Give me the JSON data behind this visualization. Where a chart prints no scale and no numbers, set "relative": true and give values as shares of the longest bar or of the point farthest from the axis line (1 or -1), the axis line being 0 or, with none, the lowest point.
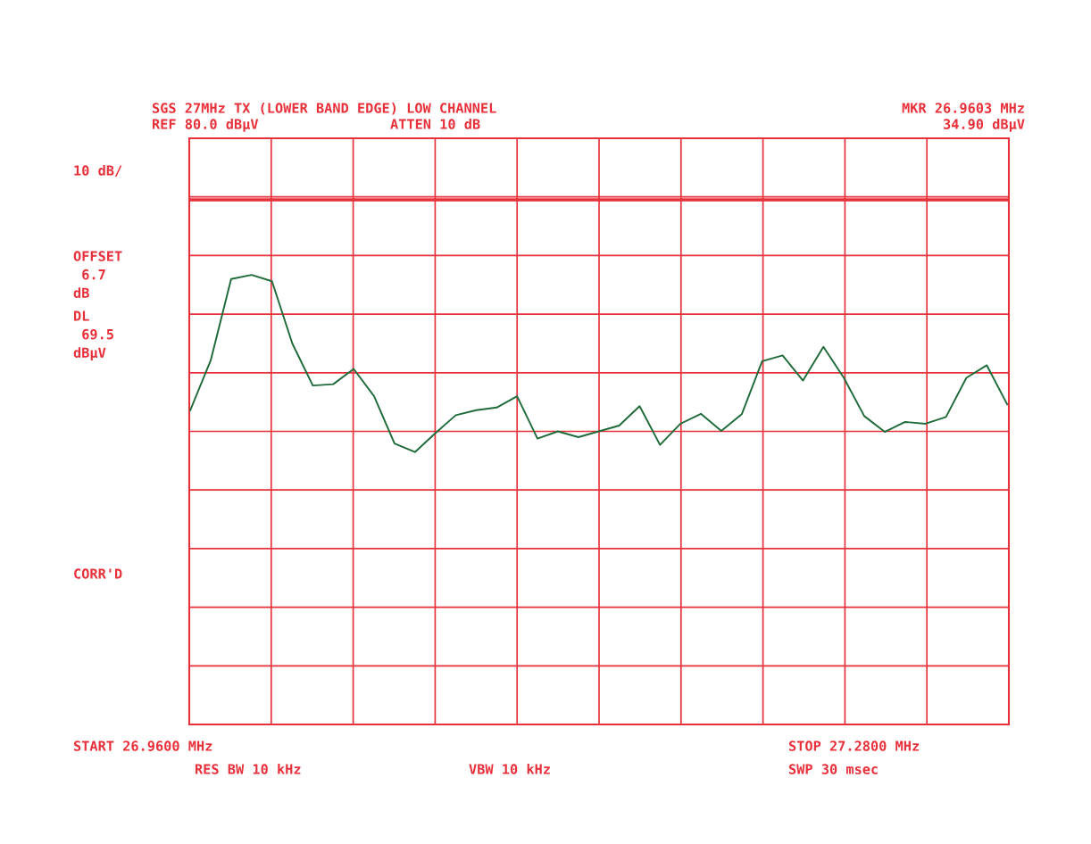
{
  "chart_data": {
    "type": "line",
    "relative": true,
    "annotations": [
      "SGS 27MHz TX (LOWER BAND EDGE) LOW CHANNEL",
      "MKR 26.9603 MHz",
      "REF 80.0 dBμV",
      "ATTEN 10 dB",
      "34.90 dBμV",
      "10 dB/",
      "OFFSET\n 6.7\ndB",
      "DL\n 69.5\ndBμV",
      "CORR'D",
      "START 26.9600 MHz",
      "RES BW 10 kHz",
      "VBW 10 kHz",
      "STOP 27.2800 MHz",
      "SWP 30 msec"
    ],
    "categories": [
      null,
      null,
      null,
      null,
      null,
      null,
      null,
      null,
      null,
      null,
      null,
      null,
      null,
      null,
      null,
      null,
      null,
      null,
      null,
      null,
      null,
      null,
      null,
      null,
      null,
      null,
      null,
      null,
      null,
      null,
      null,
      null,
      null,
      null,
      null,
      null,
      null,
      null,
      null,
      null,
      null
    ],
    "grid": true,
    "marker": "none",
    "line_style": "solid",
    "ref_lines": [
      {
        "axis": "y",
        "value": 1.167,
        "color": "#e8303a"
      }
    ],
    "series": [
      {
        "color": "#1f6b3a",
        "values": [
          0.699,
          0.81,
          0.991,
          1.0,
          0.986,
          0.847,
          0.754,
          0.757,
          0.791,
          0.73,
          0.625,
          0.606,
          0.648,
          0.688,
          0.699,
          0.705,
          0.73,
          0.636,
          0.652,
          0.639,
          0.652,
          0.665,
          0.708,
          0.622,
          0.669,
          0.691,
          0.653,
          0.69,
          0.808,
          0.821,
          0.765,
          0.84,
          0.771,
          0.686,
          0.651,
          0.673,
          0.669,
          0.684,
          0.771,
          0.799,
          0.712
        ]
      }
    ]
  }
}
